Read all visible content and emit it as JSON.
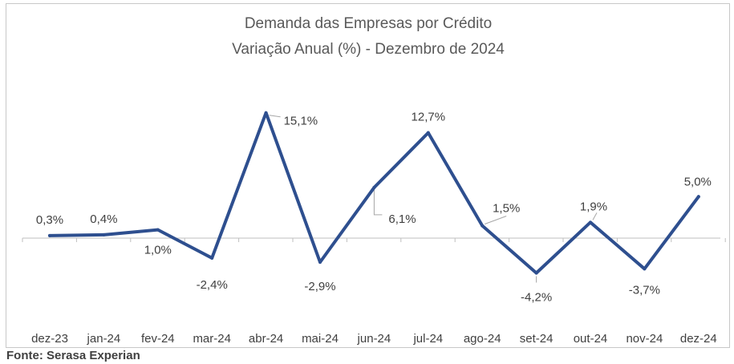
{
  "chart_data": {
    "type": "line",
    "title": "Demanda das Empresas por Crédito",
    "subtitle": "Variação Anual (%) - Dezembro de 2024",
    "categories": [
      "dez-23",
      "jan-24",
      "fev-24",
      "mar-24",
      "abr-24",
      "mai-24",
      "jun-24",
      "jul-24",
      "ago-24",
      "set-24",
      "out-24",
      "nov-24",
      "dez-24"
    ],
    "series": [
      {
        "values": [
          0.3,
          0.4,
          1.0,
          -2.4,
          15.1,
          -2.9,
          6.1,
          12.7,
          1.5,
          -4.2,
          1.9,
          -3.7,
          5.0
        ],
        "labels": [
          "0,3%",
          "0,4%",
          "1,0%",
          "-2,4%",
          "15,1%",
          "-2,9%",
          "6,1%",
          "12,7%",
          "1,5%",
          "-4,2%",
          "1,9%",
          "-3,7%",
          "5,0%"
        ],
        "color": "#2e4f8f"
      }
    ],
    "xlabel": "",
    "ylabel": "",
    "ylim": [
      -9,
      20
    ],
    "grid": false,
    "legend": "none"
  },
  "source": "Fonte: Serasa Experian"
}
